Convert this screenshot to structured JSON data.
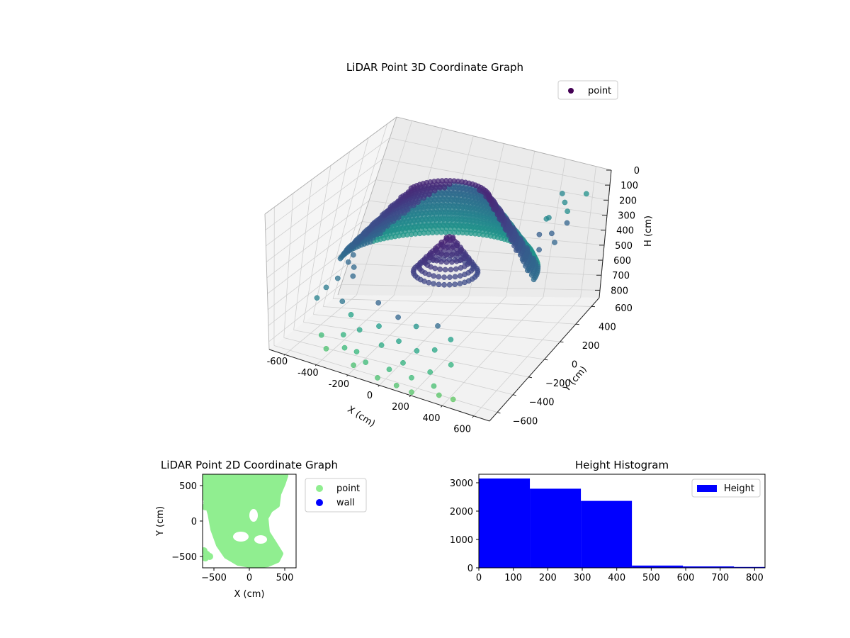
{
  "chart_data": [
    {
      "type": "scatter",
      "projection": "3d",
      "title": "LiDAR Point 3D Coordinate Graph",
      "xlabel": "X (cm)",
      "ylabel": "Y (cm)",
      "zlabel": "H (cm)",
      "xlim": [
        -700,
        700
      ],
      "ylim": [
        -700,
        700
      ],
      "zlim": [
        0,
        850
      ],
      "zinverted": true,
      "xticks": [
        -600,
        -400,
        -200,
        0,
        200,
        400,
        600
      ],
      "yticks": [
        -600,
        -400,
        -200,
        0,
        200,
        400,
        600
      ],
      "zticks": [
        0,
        100,
        200,
        300,
        400,
        500,
        600,
        700,
        800
      ],
      "legend": {
        "position": "top-right",
        "entries": [
          {
            "name": "point",
            "color": "#440154"
          }
        ]
      },
      "colormap": "viridis",
      "grid": true,
      "structure": {
        "rings": [
          {
            "cx": 0,
            "cy": 60,
            "r": 520,
            "h": 420,
            "theta_start": 0.15,
            "theta_end": 3.3
          },
          {
            "cx": 0,
            "cy": 60,
            "r": 480,
            "h": 370,
            "theta_start": 0.15,
            "theta_end": 3.3
          },
          {
            "cx": 0,
            "cy": 60,
            "r": 440,
            "h": 320,
            "theta_start": 0.2,
            "theta_end": 3.3
          },
          {
            "cx": 0,
            "cy": 60,
            "r": 400,
            "h": 270,
            "theta_start": 0.2,
            "theta_end": 3.3
          },
          {
            "cx": 0,
            "cy": 60,
            "r": 360,
            "h": 220,
            "theta_start": 0.25,
            "theta_end": 3.2
          },
          {
            "cx": 0,
            "cy": 60,
            "r": 320,
            "h": 170,
            "theta_start": 0.3,
            "theta_end": 3.2
          },
          {
            "cx": 0,
            "cy": 60,
            "r": 280,
            "h": 120,
            "theta_start": 0.35,
            "theta_end": 3.1
          },
          {
            "cx": 0,
            "cy": 60,
            "r": 240,
            "h": 70,
            "theta_start": 0.4,
            "theta_end": 3.0
          }
        ],
        "inner_dome": {
          "cx": 60,
          "cy": 40,
          "r": 180,
          "h": 250
        }
      },
      "scatter_points": [
        [
          -520,
          -80,
          560
        ],
        [
          -560,
          -140,
          600
        ],
        [
          -470,
          20,
          520
        ],
        [
          -490,
          -30,
          480
        ],
        [
          -580,
          -220,
          640
        ],
        [
          -500,
          60,
          470
        ],
        [
          -530,
          120,
          450
        ],
        [
          -440,
          -60,
          540
        ],
        [
          560,
          420,
          120
        ],
        [
          600,
          380,
          150
        ],
        [
          520,
          460,
          90
        ],
        [
          640,
          300,
          180
        ],
        [
          580,
          240,
          230
        ],
        [
          620,
          200,
          260
        ],
        [
          500,
          360,
          200
        ],
        [
          480,
          300,
          280
        ],
        [
          660,
          480,
          70
        ],
        [
          540,
          180,
          310
        ],
        [
          460,
          420,
          240
        ],
        [
          -300,
          -520,
          700
        ],
        [
          -260,
          -600,
          740
        ],
        [
          -200,
          -560,
          760
        ],
        [
          -120,
          -620,
          780
        ],
        [
          -80,
          -480,
          720
        ],
        [
          20,
          -600,
          790
        ],
        [
          80,
          -540,
          760
        ],
        [
          160,
          -600,
          800
        ],
        [
          240,
          -520,
          780
        ],
        [
          300,
          -600,
          810
        ],
        [
          360,
          -660,
          820
        ],
        [
          440,
          -640,
          830
        ],
        [
          -360,
          -640,
          760
        ],
        [
          -420,
          -560,
          720
        ],
        [
          -180,
          -660,
          800
        ],
        [
          -20,
          -680,
          820
        ],
        [
          100,
          -680,
          830
        ],
        [
          200,
          -690,
          835
        ],
        [
          -240,
          -420,
          690
        ],
        [
          -140,
          -380,
          660
        ],
        [
          0,
          -420,
          700
        ],
        [
          120,
          -440,
          720
        ],
        [
          220,
          -420,
          700
        ],
        [
          340,
          -460,
          740
        ],
        [
          -320,
          -360,
          640
        ],
        [
          -60,
          -300,
          620
        ],
        [
          60,
          -320,
          640
        ],
        [
          180,
          -300,
          620
        ],
        [
          280,
          -340,
          660
        ],
        [
          -400,
          -300,
          600
        ],
        [
          -200,
          -260,
          580
        ]
      ]
    },
    {
      "type": "scatter",
      "title": "LiDAR Point 2D Coordinate Graph",
      "xlabel": "X (cm)",
      "ylabel": "Y (cm)",
      "xlim": [
        -660,
        660
      ],
      "ylim": [
        -660,
        660
      ],
      "xticks": [
        -500,
        0,
        500
      ],
      "yticks": [
        -500,
        0,
        500
      ],
      "legend": {
        "position": "outside-right",
        "entries": [
          {
            "name": "point",
            "color": "#90ee90"
          },
          {
            "name": "wall",
            "color": "#0000ff"
          }
        ]
      },
      "point_color": "#90ee90",
      "region_polygon": [
        [
          -650,
          660
        ],
        [
          -200,
          660
        ],
        [
          100,
          660
        ],
        [
          450,
          660
        ],
        [
          520,
          640
        ],
        [
          480,
          520
        ],
        [
          420,
          380
        ],
        [
          400,
          220
        ],
        [
          300,
          150
        ],
        [
          240,
          40
        ],
        [
          260,
          -160
        ],
        [
          350,
          -300
        ],
        [
          450,
          -460
        ],
        [
          400,
          -560
        ],
        [
          260,
          -620
        ],
        [
          60,
          -640
        ],
        [
          -160,
          -600
        ],
        [
          -330,
          -500
        ],
        [
          -440,
          -340
        ],
        [
          -520,
          -120
        ],
        [
          -560,
          100
        ],
        [
          -620,
          300
        ],
        [
          -650,
          450
        ]
      ],
      "extra_points": [
        [
          -640,
          -420
        ],
        [
          -600,
          -470
        ],
        [
          -560,
          -500
        ],
        [
          -620,
          -520
        ],
        [
          -520,
          600
        ],
        [
          -560,
          640
        ],
        [
          -440,
          600
        ],
        [
          -460,
          560
        ],
        [
          -620,
          200
        ],
        [
          -600,
          260
        ],
        [
          -640,
          340
        ],
        [
          -380,
          640
        ],
        [
          420,
          600
        ],
        [
          480,
          620
        ],
        [
          -250,
          -180
        ],
        [
          -200,
          -240
        ],
        [
          -230,
          -300
        ],
        [
          -180,
          -280
        ]
      ],
      "holes": [
        [
          -120,
          -220,
          110,
          70
        ],
        [
          160,
          -260,
          90,
          60
        ],
        [
          60,
          80,
          60,
          90
        ]
      ]
    },
    {
      "type": "bar",
      "subtype": "histogram",
      "title": "Height Histogram",
      "xlabel": "",
      "ylabel": "",
      "bin_edges": [
        0,
        148,
        296,
        444,
        592,
        740,
        888
      ],
      "values": [
        3150,
        2790,
        2360,
        80,
        50,
        30
      ],
      "xlim": [
        0,
        830
      ],
      "ylim": [
        0,
        3300
      ],
      "xticks": [
        0,
        100,
        200,
        300,
        400,
        500,
        600,
        700,
        800
      ],
      "yticks": [
        0,
        1000,
        2000,
        3000
      ],
      "legend": {
        "position": "top-right",
        "entries": [
          {
            "name": "Height",
            "color": "#0000ff"
          }
        ]
      },
      "bar_color": "#0000ff",
      "grid": false
    }
  ]
}
